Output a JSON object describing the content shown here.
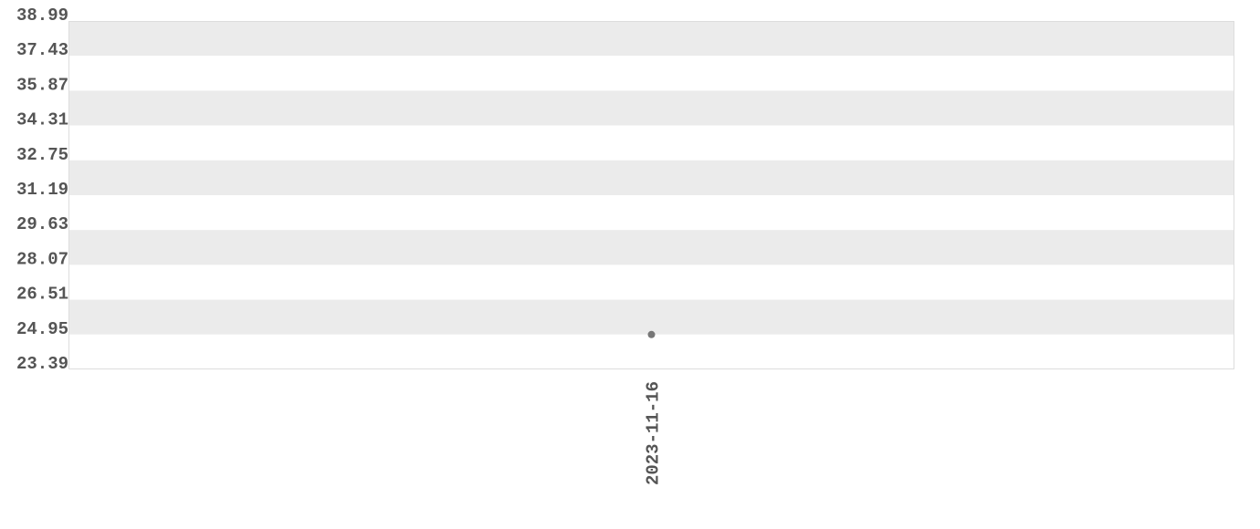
{
  "chart_data": {
    "type": "scatter",
    "title": "",
    "xlabel": "",
    "ylabel": "",
    "x_categories": [
      "2023-11-16"
    ],
    "points": [
      {
        "x": "2023-11-16",
        "y": 24.95
      }
    ],
    "ylim": [
      23.39,
      38.99
    ],
    "yticks": [
      "23.39",
      "24.95",
      "26.51",
      "28.07",
      "29.63",
      "31.19",
      "32.75",
      "34.31",
      "35.87",
      "37.43",
      "38.99"
    ],
    "grid": "alternating horizontal bands",
    "legend": "none",
    "colors": {
      "band": "#ebebeb",
      "point": "#777777",
      "text": "#555555",
      "border": "#dddddd"
    }
  }
}
